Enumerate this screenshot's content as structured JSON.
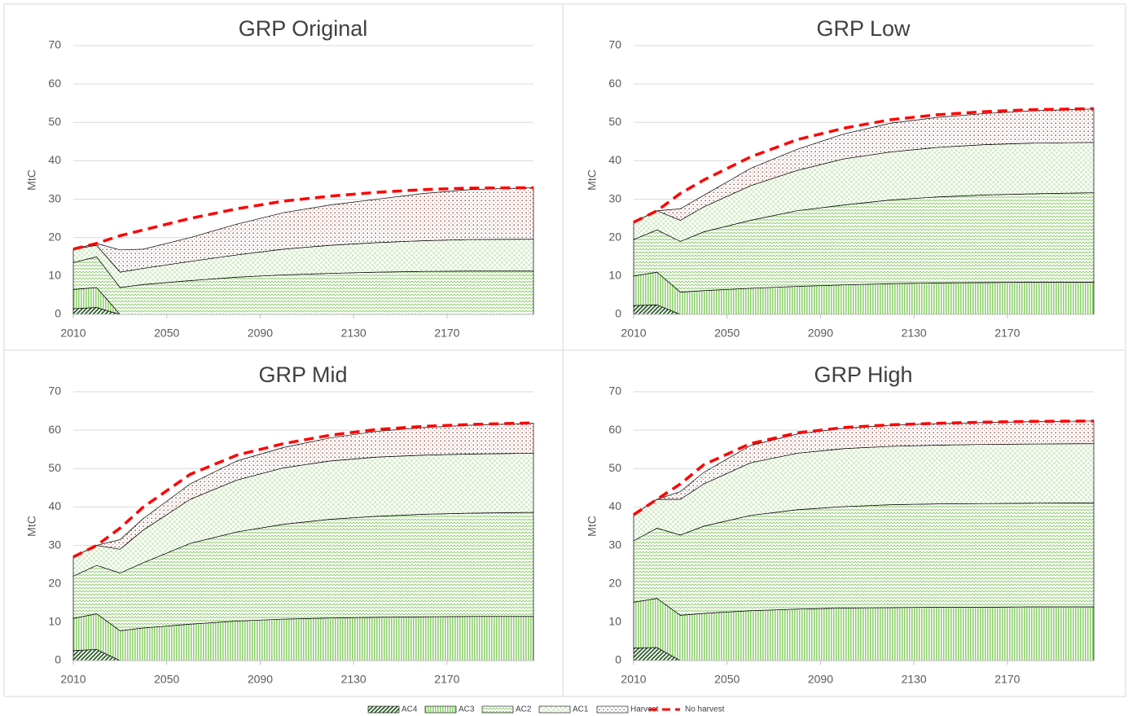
{
  "chart_data": [
    {
      "type": "area",
      "title": "GRP Original",
      "ylabel": "MtC",
      "x": [
        2010,
        2020,
        2030,
        2040,
        2060,
        2080,
        2100,
        2120,
        2140,
        2160,
        2180,
        2207
      ],
      "xlim": [
        2010,
        2207
      ],
      "xticks": [
        2010,
        2050,
        2090,
        2130,
        2170
      ],
      "ylim": [
        0,
        70
      ],
      "yticks": [
        0,
        10,
        20,
        30,
        40,
        50,
        60,
        70
      ],
      "grid": true,
      "series": [
        {
          "name": "AC4",
          "color": "#2e5e2a",
          "pattern": "diagonal",
          "values": [
            1.5,
            1.8,
            0,
            0,
            0,
            0,
            0,
            0,
            0,
            0,
            0,
            0
          ]
        },
        {
          "name": "AC3",
          "color": "#8fcf6f",
          "pattern": "vlines",
          "values": [
            5,
            5.2,
            0,
            0,
            0,
            0,
            0,
            0,
            0,
            0,
            0,
            0
          ]
        },
        {
          "name": "AC2",
          "color": "#8fcf6f",
          "pattern": "zigzag",
          "values": [
            7,
            8,
            7,
            7.8,
            8.8,
            9.7,
            10.3,
            10.7,
            11,
            11.2,
            11.3,
            11.3
          ]
        },
        {
          "name": "AC1",
          "color": "#a9d98f",
          "pattern": "checks",
          "values": [
            3.5,
            3,
            4,
            4.2,
            5,
            5.8,
            6.7,
            7.3,
            7.7,
            8,
            8.2,
            8.3
          ]
        },
        {
          "name": "Harvest",
          "color": "#7a4b3a",
          "pattern": "dots",
          "values": [
            0,
            0.5,
            5.8,
            5,
            6.2,
            8,
            9.5,
            10.5,
            11.3,
            12.3,
            13,
            13.4
          ]
        },
        {
          "name": "No harvest",
          "color": "#ff0000",
          "pattern": "dashed-line",
          "values": [
            17,
            18.5,
            20.5,
            22,
            25,
            27.5,
            29.5,
            30.8,
            31.8,
            32.5,
            32.9,
            33
          ]
        }
      ]
    },
    {
      "type": "area",
      "title": "GRP Low",
      "ylabel": "MtC",
      "x": [
        2010,
        2020,
        2030,
        2040,
        2060,
        2080,
        2100,
        2120,
        2140,
        2160,
        2180,
        2207
      ],
      "xlim": [
        2010,
        2207
      ],
      "xticks": [
        2010,
        2050,
        2090,
        2130,
        2170
      ],
      "ylim": [
        0,
        70
      ],
      "yticks": [
        0,
        10,
        20,
        30,
        40,
        50,
        60,
        70
      ],
      "grid": true,
      "series": [
        {
          "name": "AC4",
          "color": "#2e5e2a",
          "pattern": "diagonal",
          "values": [
            2.3,
            2.5,
            0,
            0,
            0,
            0,
            0,
            0,
            0,
            0,
            0,
            0
          ]
        },
        {
          "name": "AC3",
          "color": "#8fcf6f",
          "pattern": "vlines",
          "values": [
            7.7,
            8.5,
            5.8,
            6.2,
            6.8,
            7.3,
            7.7,
            8,
            8.2,
            8.3,
            8.4,
            8.4
          ]
        },
        {
          "name": "AC2",
          "color": "#8fcf6f",
          "pattern": "zigzag",
          "values": [
            9.5,
            11,
            13.2,
            15.3,
            17.7,
            19.7,
            20.8,
            21.8,
            22.4,
            22.8,
            23,
            23.3
          ]
        },
        {
          "name": "AC1",
          "color": "#a9d98f",
          "pattern": "checks",
          "values": [
            4.5,
            5,
            5.5,
            6.5,
            9,
            10.5,
            12,
            12.5,
            12.9,
            13.1,
            13.2,
            13.1
          ]
        },
        {
          "name": "Harvest",
          "color": "#7a4b3a",
          "pattern": "dots",
          "values": [
            0,
            0,
            3,
            3,
            4.5,
            5.5,
            6.5,
            7.5,
            7.8,
            8.1,
            8.4,
            8.7
          ]
        },
        {
          "name": "No harvest",
          "color": "#ff0000",
          "pattern": "dashed-line",
          "values": [
            24,
            27,
            31.5,
            35,
            41,
            45.5,
            48.5,
            50.7,
            52,
            52.8,
            53.3,
            53.6
          ]
        }
      ]
    },
    {
      "type": "area",
      "title": "GRP Mid",
      "ylabel": "MtC",
      "x": [
        2010,
        2020,
        2030,
        2040,
        2060,
        2080,
        2100,
        2120,
        2140,
        2160,
        2180,
        2207
      ],
      "xlim": [
        2010,
        2207
      ],
      "xticks": [
        2010,
        2050,
        2090,
        2130,
        2170
      ],
      "ylim": [
        0,
        70
      ],
      "yticks": [
        0,
        10,
        20,
        30,
        40,
        50,
        60,
        70
      ],
      "grid": true,
      "series": [
        {
          "name": "AC4",
          "color": "#2e5e2a",
          "pattern": "diagonal",
          "values": [
            2.6,
            2.9,
            0,
            0,
            0,
            0,
            0,
            0,
            0,
            0,
            0,
            0
          ]
        },
        {
          "name": "AC3",
          "color": "#8fcf6f",
          "pattern": "vlines",
          "values": [
            8.4,
            9.3,
            7.8,
            8.5,
            9.5,
            10.3,
            10.8,
            11.1,
            11.3,
            11.4,
            11.5,
            11.5
          ]
        },
        {
          "name": "AC2",
          "color": "#8fcf6f",
          "pattern": "zigzag",
          "values": [
            11,
            12.6,
            15,
            17,
            21,
            23.2,
            24.7,
            25.7,
            26.3,
            26.7,
            26.9,
            27.1
          ]
        },
        {
          "name": "AC1",
          "color": "#a9d98f",
          "pattern": "checks",
          "values": [
            5,
            5.2,
            6.2,
            8.5,
            11.5,
            13.5,
            14.7,
            15.2,
            15.4,
            15.4,
            15.4,
            15.4
          ]
        },
        {
          "name": "Harvest",
          "color": "#7a4b3a",
          "pattern": "dots",
          "values": [
            0,
            0,
            2.5,
            3,
            4,
            5,
            5.3,
            6,
            6.7,
            7.2,
            7.5,
            7.8
          ]
        },
        {
          "name": "No harvest",
          "color": "#ff0000",
          "pattern": "dashed-line",
          "values": [
            27,
            30,
            34.5,
            40,
            48.5,
            53.5,
            56.5,
            58.7,
            60.2,
            61,
            61.5,
            61.9
          ]
        }
      ]
    },
    {
      "type": "area",
      "title": "GRP High",
      "ylabel": "MtC",
      "x": [
        2010,
        2020,
        2030,
        2040,
        2060,
        2080,
        2100,
        2120,
        2140,
        2160,
        2180,
        2207
      ],
      "xlim": [
        2010,
        2207
      ],
      "xticks": [
        2010,
        2050,
        2090,
        2130,
        2170
      ],
      "ylim": [
        0,
        70
      ],
      "yticks": [
        0,
        10,
        20,
        30,
        40,
        50,
        60,
        70
      ],
      "grid": true,
      "series": [
        {
          "name": "AC4",
          "color": "#2e5e2a",
          "pattern": "diagonal",
          "values": [
            3.3,
            3.4,
            0,
            0,
            0,
            0,
            0,
            0,
            0,
            0,
            0,
            0
          ]
        },
        {
          "name": "AC3",
          "color": "#8fcf6f",
          "pattern": "vlines",
          "values": [
            11.9,
            12.8,
            11.8,
            12.3,
            13,
            13.4,
            13.7,
            13.8,
            13.9,
            13.9,
            14,
            14
          ]
        },
        {
          "name": "AC2",
          "color": "#8fcf6f",
          "pattern": "zigzag",
          "values": [
            16,
            18.3,
            20.9,
            22.7,
            24.8,
            25.9,
            26.4,
            26.8,
            26.9,
            27,
            27,
            27.1
          ]
        },
        {
          "name": "AC1",
          "color": "#a9d98f",
          "pattern": "checks",
          "values": [
            6.8,
            7.5,
            9.3,
            11,
            13.7,
            14.7,
            15.1,
            15.2,
            15.3,
            15.4,
            15.4,
            15.4
          ]
        },
        {
          "name": "Harvest",
          "color": "#7a4b3a",
          "pattern": "dots",
          "values": [
            0,
            0,
            2,
            3,
            4.5,
            5,
            5.3,
            5.5,
            5.6,
            5.7,
            5.8,
            5.9
          ]
        },
        {
          "name": "No harvest",
          "color": "#ff0000",
          "pattern": "dashed-line",
          "values": [
            38,
            42,
            46,
            51,
            56.5,
            59.3,
            60.7,
            61.4,
            61.8,
            62.1,
            62.3,
            62.4
          ]
        }
      ]
    }
  ]
}
